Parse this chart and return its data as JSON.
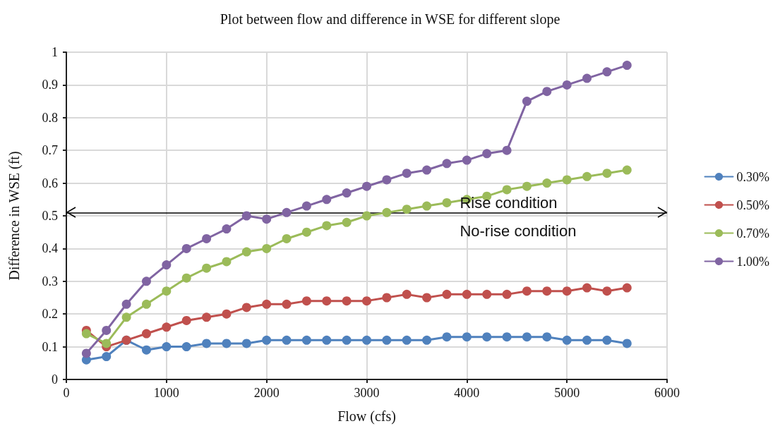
{
  "chart_data": {
    "type": "line",
    "title": "Plot between flow and difference in WSE for different slope",
    "xlabel": "Flow (cfs)",
    "ylabel": "Difference in WSE (ft)",
    "x": [
      200,
      400,
      600,
      800,
      1000,
      1200,
      1400,
      1600,
      1800,
      2000,
      2200,
      2400,
      2600,
      2800,
      3000,
      3200,
      3400,
      3600,
      3800,
      4000,
      4200,
      4400,
      4600,
      4800,
      5000,
      5200,
      5400,
      5600
    ],
    "series": [
      {
        "name": "0.30%",
        "color": "#4f81bd",
        "values": [
          0.06,
          0.07,
          0.12,
          0.09,
          0.1,
          0.1,
          0.11,
          0.11,
          0.11,
          0.12,
          0.12,
          0.12,
          0.12,
          0.12,
          0.12,
          0.12,
          0.12,
          0.12,
          0.13,
          0.13,
          0.13,
          0.13,
          0.13,
          0.13,
          0.12,
          0.12,
          0.12,
          0.11
        ]
      },
      {
        "name": "0.50%",
        "color": "#c0504d",
        "values": [
          0.15,
          0.1,
          0.12,
          0.14,
          0.16,
          0.18,
          0.19,
          0.2,
          0.22,
          0.23,
          0.23,
          0.24,
          0.24,
          0.24,
          0.24,
          0.25,
          0.26,
          0.25,
          0.26,
          0.26,
          0.26,
          0.26,
          0.27,
          0.27,
          0.27,
          0.28,
          0.27,
          0.28
        ]
      },
      {
        "name": "0.70%",
        "color": "#9bbb59",
        "values": [
          0.14,
          0.11,
          0.19,
          0.23,
          0.27,
          0.31,
          0.34,
          0.36,
          0.39,
          0.4,
          0.43,
          0.45,
          0.47,
          0.48,
          0.5,
          0.51,
          0.52,
          0.53,
          0.54,
          0.55,
          0.56,
          0.58,
          0.59,
          0.6,
          0.61,
          0.62,
          0.63,
          0.64
        ]
      },
      {
        "name": "1.00%",
        "color": "#8064a2",
        "values": [
          0.08,
          0.15,
          0.23,
          0.3,
          0.35,
          0.4,
          0.43,
          0.46,
          0.5,
          0.49,
          0.51,
          0.53,
          0.55,
          0.57,
          0.59,
          0.61,
          0.63,
          0.64,
          0.66,
          0.67,
          0.69,
          0.7,
          0.85,
          0.88,
          0.9,
          0.92,
          0.94,
          0.96
        ]
      }
    ],
    "xlim": [
      0,
      6000
    ],
    "xticks": [
      0,
      1000,
      2000,
      3000,
      4000,
      5000,
      6000
    ],
    "ylim": [
      0,
      1
    ],
    "yticks": [
      0,
      0.1,
      0.2,
      0.3,
      0.4,
      0.5,
      0.6,
      0.7,
      0.8,
      0.9,
      1
    ],
    "ref_lines": [
      {
        "axis": "y",
        "value": 0.51,
        "color": "#000000"
      }
    ],
    "annotations": [
      "Rise condition",
      "No-rise condition"
    ],
    "grid": true,
    "legend": "right",
    "marker": "circle",
    "line_style": "solid"
  }
}
